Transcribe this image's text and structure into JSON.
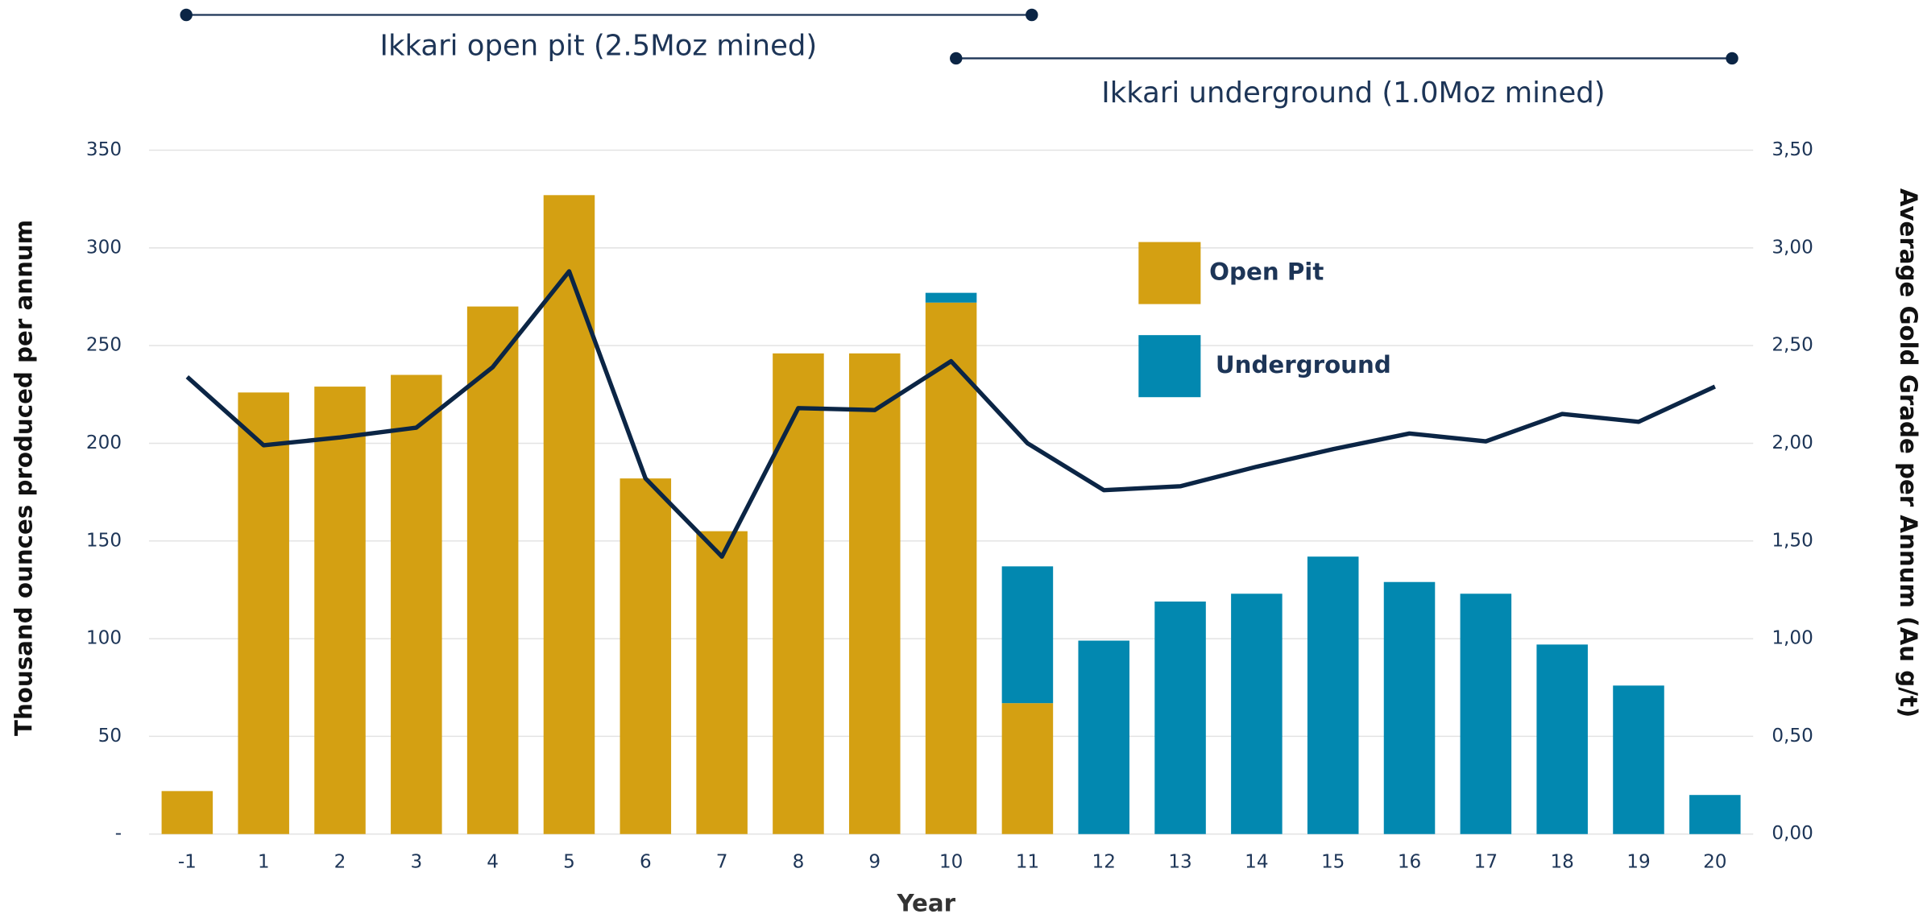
{
  "chart_data": {
    "type": "stacked-bar-line",
    "annotations": [
      "Ikkari open pit (2.5Moz mined)",
      "Ikkari underground (1.0Moz mined)"
    ],
    "x_label": "Year",
    "y_label": "Thousand ounces produced per annum",
    "y2_label": "Average Gold Grade per Annum (Au g/t)",
    "categories": [
      "-1",
      "1",
      "2",
      "3",
      "4",
      "5",
      "6",
      "7",
      "8",
      "9",
      "10",
      "11",
      "12",
      "13",
      "14",
      "15",
      "16",
      "17",
      "18",
      "19",
      "20"
    ],
    "series": [
      {
        "name": "Open Pit",
        "color": "#d4a012",
        "values": [
          22,
          226,
          229,
          235,
          270,
          327,
          182,
          155,
          246,
          246,
          272,
          67,
          0,
          0,
          0,
          0,
          0,
          0,
          0,
          0,
          0
        ]
      },
      {
        "name": "Underground",
        "color": "#0288b0",
        "values": [
          0,
          0,
          0,
          0,
          0,
          0,
          0,
          0,
          0,
          0,
          5,
          70,
          99,
          119,
          123,
          142,
          129,
          123,
          97,
          76,
          20
        ]
      },
      {
        "name": "Average Gold Grade",
        "color": "#0b2545",
        "axis": "y2",
        "values": [
          2.34,
          1.99,
          2.03,
          2.08,
          2.39,
          2.88,
          1.82,
          1.42,
          2.18,
          2.17,
          2.42,
          2.0,
          1.76,
          1.78,
          1.88,
          1.97,
          2.05,
          2.01,
          2.15,
          2.11,
          2.29
        ]
      }
    ],
    "ylim": [
      0,
      350
    ],
    "yticks": [
      {
        "value": 0,
        "label": "-"
      },
      50,
      100,
      150,
      200,
      250,
      300,
      350
    ],
    "y2lim": [
      0,
      3.5
    ],
    "y2ticks": [
      {
        "value": 0,
        "label": "0,00"
      },
      {
        "value": 0.5,
        "label": "0,50"
      },
      {
        "value": 1,
        "label": "1,00"
      },
      {
        "value": 1.5,
        "label": "1,50"
      },
      {
        "value": 2,
        "label": "2,00"
      },
      {
        "value": 2.5,
        "label": "2,50"
      },
      {
        "value": 3,
        "label": "3,00"
      },
      {
        "value": 3.5,
        "label": "3,50"
      }
    ],
    "grid": true
  }
}
